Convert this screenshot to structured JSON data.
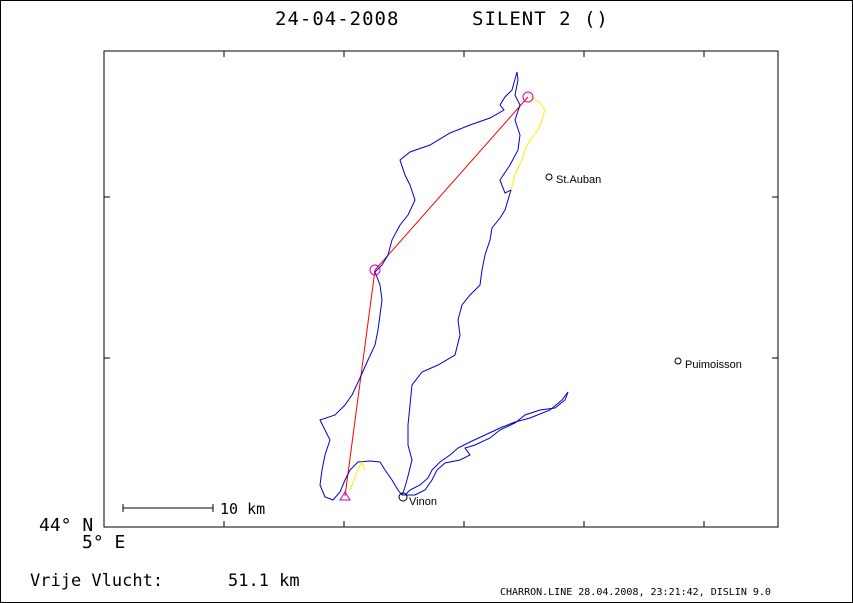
{
  "header": {
    "date": "24-04-2008",
    "glider": "SILENT 2 ()"
  },
  "axes": {
    "lat_label": "44° N",
    "lon_label": "5° E"
  },
  "scale_bar": {
    "label": "10 km"
  },
  "places": [
    {
      "name": "St.Auban"
    },
    {
      "name": "Puimoisson"
    },
    {
      "name": "Vinon"
    }
  ],
  "summary": {
    "label": "Vrije Vlucht:",
    "distance": "51.1 km"
  },
  "footer": {
    "source": "CHARRON.LINE 28.04.2008, 23:21:42, DISLIN 9.0"
  },
  "colors": {
    "track": "#0000cc",
    "task_line": "#ff0000",
    "turnpoint": "#cc00cc",
    "engine_segment": "#ffee00"
  }
}
